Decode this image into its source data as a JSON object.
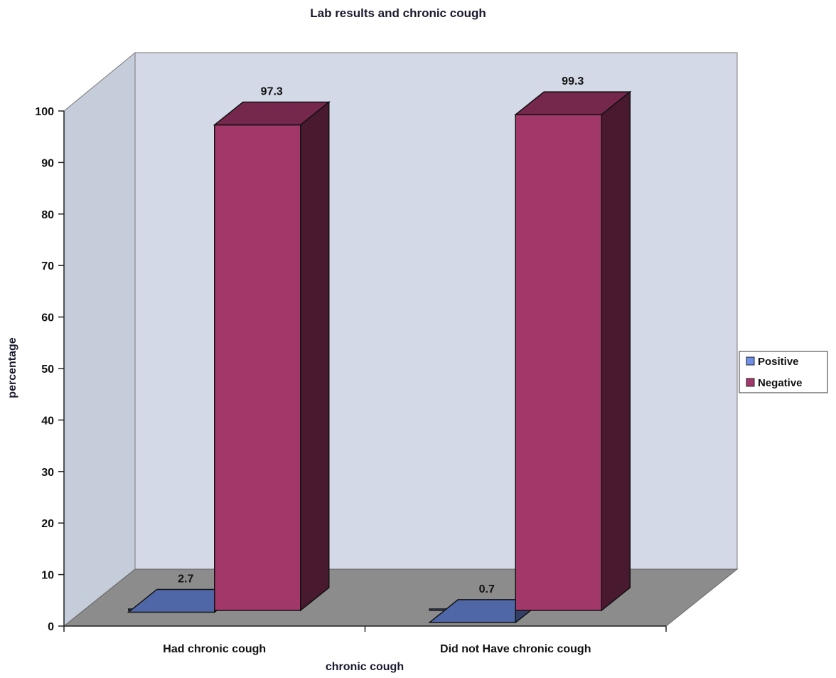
{
  "chart_data": {
    "type": "bar",
    "title": "Lab results and chronic cough",
    "xlabel": "chronic cough",
    "ylabel": "percentage",
    "categories": [
      "Had chronic cough",
      "Did not Have chronic cough"
    ],
    "series": [
      {
        "name": "Positive",
        "values": [
          2.7,
          0.7
        ],
        "data_labels": [
          "2.7",
          "0.7"
        ],
        "color": "#6f8fe8"
      },
      {
        "name": "Negative",
        "values": [
          97.3,
          99.3
        ],
        "data_labels": [
          "97.3",
          "99.3"
        ],
        "color": "#a2376a"
      }
    ],
    "ylim": [
      0,
      100
    ],
    "yticks": [
      "0",
      "10",
      "20",
      "30",
      "40",
      "50",
      "60",
      "70",
      "80",
      "90",
      "100"
    ],
    "three_d": true,
    "grid": false,
    "legend_position": "right",
    "colors": {
      "back_wall": "#d3d9e6",
      "side_wall": "#c5ccda",
      "floor": "#8c8c8c"
    }
  }
}
